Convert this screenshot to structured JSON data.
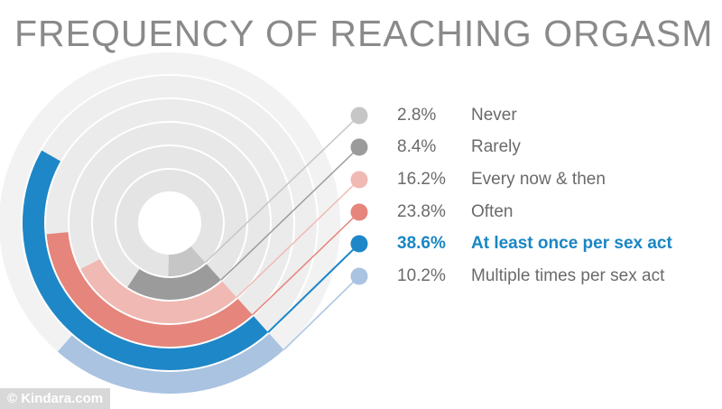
{
  "title": "FREQUENCY OF REACHING ORGASM",
  "watermark": "© Kindara.com",
  "chart_data": {
    "type": "radial-bar",
    "title": "FREQUENCY OF REACHING ORGASM",
    "unit": "%",
    "series": [
      {
        "label": "Never",
        "value": 2.8,
        "value_label": "2.8%",
        "color": "#c6c6c6",
        "highlight": false
      },
      {
        "label": "Rarely",
        "value": 8.4,
        "value_label": "8.4%",
        "color": "#9b9b9b",
        "highlight": false
      },
      {
        "label": "Every now & then",
        "value": 16.2,
        "value_label": "16.2%",
        "color": "#f1b9b3",
        "highlight": false
      },
      {
        "label": "Often",
        "value": 23.8,
        "value_label": "23.8%",
        "color": "#e5857c",
        "highlight": false
      },
      {
        "label": "At least once per sex act",
        "value": 38.6,
        "value_label": "38.6%",
        "color": "#1e87c7",
        "highlight": true
      },
      {
        "label": "Multiple times per sex act",
        "value": 10.2,
        "value_label": "10.2%",
        "color": "#a9c3e1",
        "highlight": false
      }
    ]
  }
}
